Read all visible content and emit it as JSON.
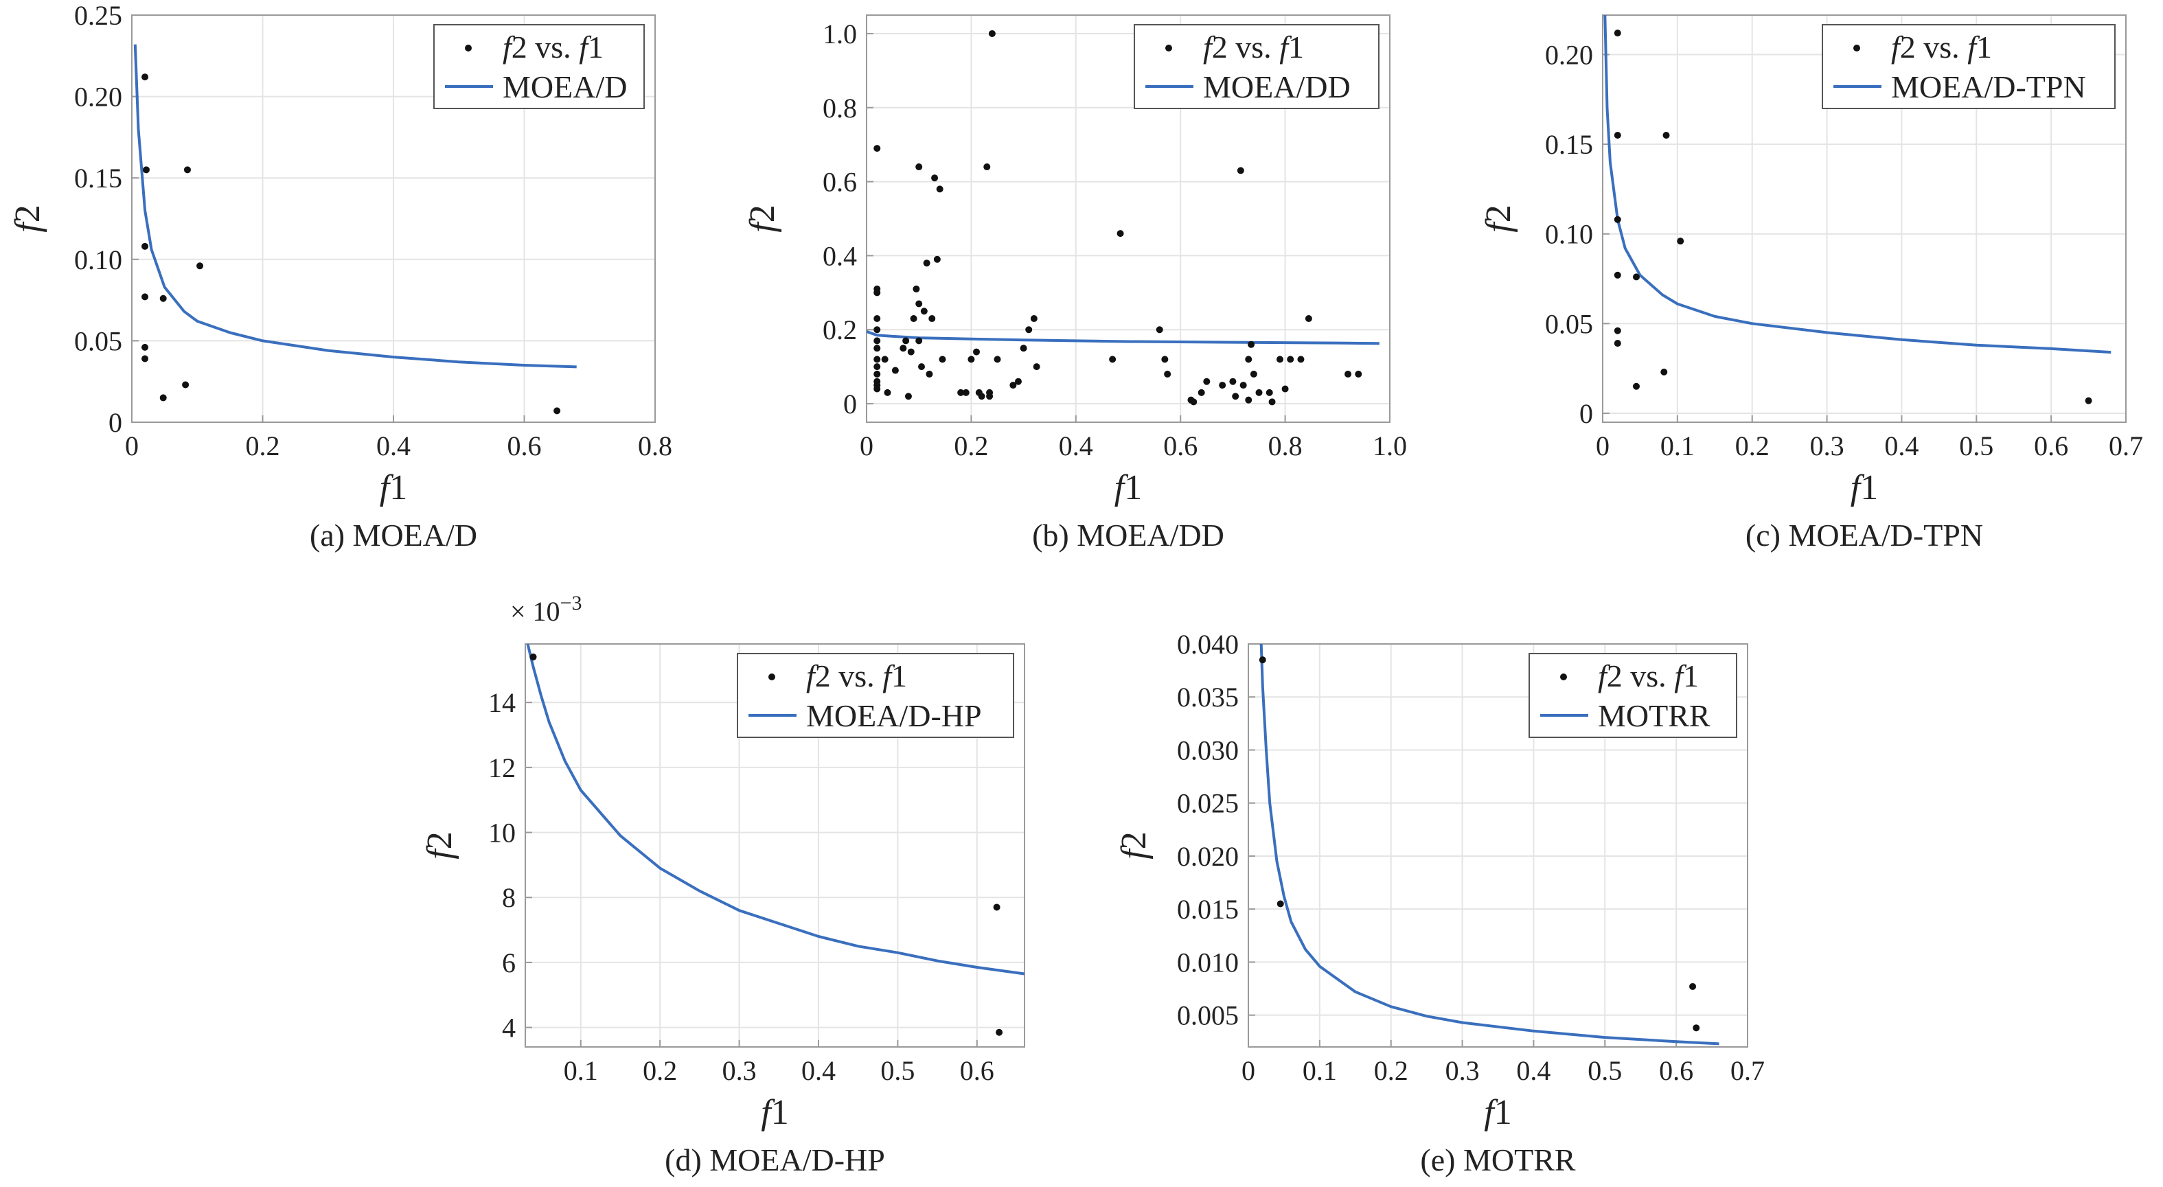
{
  "figure": {
    "background": "#ffffff",
    "curve_color": "#3a6fbe",
    "point_color": "#111111",
    "grid_color": "#e4e4e4",
    "axis_color": "#9a9a9a"
  },
  "chart_data": [
    {
      "type": "scatter",
      "id": "a",
      "caption": "(a) MOEA/D",
      "xlabel": "f1",
      "ylabel": "f2",
      "xlim": [
        0,
        0.8
      ],
      "ylim": [
        0,
        0.25
      ],
      "xticks": [
        0,
        0.2,
        0.4,
        0.6,
        0.8
      ],
      "xtick_labels": [
        "0",
        "0.2",
        "0.4",
        "0.6",
        "0.8"
      ],
      "yticks": [
        0,
        0.05,
        0.1,
        0.15,
        0.2,
        0.25
      ],
      "ytick_labels": [
        "0",
        "0.05",
        "0.10",
        "0.15",
        "0.20",
        "0.25"
      ],
      "grid": true,
      "legend_position": "top-right",
      "legend": [
        "f2 vs. f1",
        "MOEA/D"
      ],
      "points": [
        [
          0.02,
          0.212
        ],
        [
          0.022,
          0.155
        ],
        [
          0.02,
          0.108
        ],
        [
          0.02,
          0.077
        ],
        [
          0.02,
          0.046
        ],
        [
          0.02,
          0.039
        ],
        [
          0.048,
          0.076
        ],
        [
          0.048,
          0.015
        ],
        [
          0.085,
          0.155
        ],
        [
          0.104,
          0.096
        ],
        [
          0.082,
          0.023
        ],
        [
          0.65,
          0.007
        ]
      ],
      "curve": {
        "name": "MOEA/D",
        "x": [
          0.005,
          0.01,
          0.02,
          0.03,
          0.05,
          0.08,
          0.1,
          0.15,
          0.2,
          0.3,
          0.4,
          0.5,
          0.6,
          0.68
        ],
        "y": [
          0.232,
          0.18,
          0.13,
          0.106,
          0.083,
          0.068,
          0.062,
          0.055,
          0.05,
          0.044,
          0.04,
          0.037,
          0.035,
          0.034
        ]
      }
    },
    {
      "type": "scatter",
      "id": "b",
      "caption": "(b) MOEA/DD",
      "xlabel": "f1",
      "ylabel": "f2",
      "xlim": [
        0,
        1.0
      ],
      "ylim": [
        -0.05,
        1.05
      ],
      "xticks": [
        0,
        0.2,
        0.4,
        0.6,
        0.8,
        1.0
      ],
      "xtick_labels": [
        "0",
        "0.2",
        "0.4",
        "0.6",
        "0.8",
        "1.0"
      ],
      "yticks": [
        0,
        0.2,
        0.4,
        0.6,
        0.8,
        1.0
      ],
      "ytick_labels": [
        "0",
        "0.2",
        "0.4",
        "0.6",
        "0.8",
        "1.0"
      ],
      "grid": true,
      "legend_position": "top-right",
      "legend": [
        "f2 vs. f1",
        "MOEA/DD"
      ],
      "points": [
        [
          0.02,
          0.69
        ],
        [
          0.02,
          0.31
        ],
        [
          0.02,
          0.3
        ],
        [
          0.02,
          0.23
        ],
        [
          0.02,
          0.2
        ],
        [
          0.02,
          0.17
        ],
        [
          0.02,
          0.15
        ],
        [
          0.02,
          0.12
        ],
        [
          0.02,
          0.1
        ],
        [
          0.02,
          0.08
        ],
        [
          0.02,
          0.06
        ],
        [
          0.02,
          0.05
        ],
        [
          0.02,
          0.04
        ],
        [
          0.035,
          0.12
        ],
        [
          0.04,
          0.03
        ],
        [
          0.055,
          0.09
        ],
        [
          0.07,
          0.15
        ],
        [
          0.075,
          0.17
        ],
        [
          0.08,
          0.02
        ],
        [
          0.085,
          0.14
        ],
        [
          0.09,
          0.23
        ],
        [
          0.095,
          0.31
        ],
        [
          0.1,
          0.64
        ],
        [
          0.1,
          0.27
        ],
        [
          0.1,
          0.17
        ],
        [
          0.105,
          0.1
        ],
        [
          0.11,
          0.25
        ],
        [
          0.115,
          0.38
        ],
        [
          0.12,
          0.08
        ],
        [
          0.125,
          0.23
        ],
        [
          0.13,
          0.61
        ],
        [
          0.135,
          0.39
        ],
        [
          0.14,
          0.58
        ],
        [
          0.145,
          0.12
        ],
        [
          0.18,
          0.03
        ],
        [
          0.19,
          0.03
        ],
        [
          0.2,
          0.12
        ],
        [
          0.21,
          0.14
        ],
        [
          0.215,
          0.03
        ],
        [
          0.22,
          0.02
        ],
        [
          0.23,
          0.64
        ],
        [
          0.235,
          0.02
        ],
        [
          0.235,
          0.03
        ],
        [
          0.24,
          1.0
        ],
        [
          0.25,
          0.12
        ],
        [
          0.28,
          0.05
        ],
        [
          0.29,
          0.06
        ],
        [
          0.3,
          0.15
        ],
        [
          0.31,
          0.2
        ],
        [
          0.32,
          0.23
        ],
        [
          0.325,
          0.1
        ],
        [
          0.47,
          0.12
        ],
        [
          0.485,
          0.46
        ],
        [
          0.56,
          0.2
        ],
        [
          0.57,
          0.12
        ],
        [
          0.575,
          0.08
        ],
        [
          0.62,
          0.01
        ],
        [
          0.625,
          0.005
        ],
        [
          0.64,
          0.03
        ],
        [
          0.65,
          0.06
        ],
        [
          0.68,
          0.05
        ],
        [
          0.7,
          0.06
        ],
        [
          0.705,
          0.02
        ],
        [
          0.715,
          0.63
        ],
        [
          0.72,
          0.05
        ],
        [
          0.73,
          0.01
        ],
        [
          0.73,
          0.12
        ],
        [
          0.735,
          0.16
        ],
        [
          0.74,
          0.08
        ],
        [
          0.75,
          0.03
        ],
        [
          0.77,
          0.03
        ],
        [
          0.775,
          0.005
        ],
        [
          0.79,
          0.12
        ],
        [
          0.8,
          0.04
        ],
        [
          0.81,
          0.12
        ],
        [
          0.83,
          0.12
        ],
        [
          0.845,
          0.23
        ],
        [
          0.92,
          0.08
        ],
        [
          0.94,
          0.08
        ]
      ],
      "curve": {
        "name": "MOEA/DD",
        "x": [
          0.0,
          0.02,
          0.05,
          0.1,
          0.2,
          0.3,
          0.5,
          0.7,
          0.9,
          0.98
        ],
        "y": [
          0.195,
          0.185,
          0.182,
          0.178,
          0.175,
          0.172,
          0.168,
          0.166,
          0.164,
          0.163
        ]
      }
    },
    {
      "type": "scatter",
      "id": "c",
      "caption": "(c) MOEA/D-TPN",
      "xlabel": "f1",
      "ylabel": "f2",
      "xlim": [
        0,
        0.7
      ],
      "ylim": [
        -0.005,
        0.222
      ],
      "xticks": [
        0,
        0.1,
        0.2,
        0.3,
        0.4,
        0.5,
        0.6,
        0.7
      ],
      "xtick_labels": [
        "0",
        "0.1",
        "0.2",
        "0.3",
        "0.4",
        "0.5",
        "0.6",
        "0.7"
      ],
      "yticks": [
        0,
        0.05,
        0.1,
        0.15,
        0.2
      ],
      "ytick_labels": [
        "0",
        "0.05",
        "0.10",
        "0.15",
        "0.20"
      ],
      "grid": true,
      "legend_position": "top-right",
      "legend": [
        "f2 vs. f1",
        "MOEA/D-TPN"
      ],
      "points": [
        [
          0.02,
          0.212
        ],
        [
          0.02,
          0.155
        ],
        [
          0.02,
          0.108
        ],
        [
          0.02,
          0.077
        ],
        [
          0.02,
          0.046
        ],
        [
          0.02,
          0.039
        ],
        [
          0.045,
          0.076
        ],
        [
          0.045,
          0.015
        ],
        [
          0.085,
          0.155
        ],
        [
          0.104,
          0.096
        ],
        [
          0.082,
          0.023
        ],
        [
          0.65,
          0.007
        ]
      ],
      "curve": {
        "name": "MOEA/D-TPN",
        "x": [
          0.003,
          0.006,
          0.01,
          0.02,
          0.03,
          0.05,
          0.08,
          0.1,
          0.15,
          0.2,
          0.3,
          0.4,
          0.5,
          0.6,
          0.68
        ],
        "y": [
          0.222,
          0.17,
          0.14,
          0.108,
          0.092,
          0.077,
          0.066,
          0.061,
          0.054,
          0.05,
          0.045,
          0.041,
          0.038,
          0.036,
          0.034
        ]
      }
    },
    {
      "type": "scatter",
      "id": "d",
      "caption": "(d) MOEA/D-HP",
      "xlabel": "f1",
      "ylabel": "f2",
      "multiplier": "× 10",
      "multiplier_exponent": "−3",
      "xlim": [
        0.03,
        0.66
      ],
      "ylim": [
        3.4,
        15.8
      ],
      "xticks": [
        0.1,
        0.2,
        0.3,
        0.4,
        0.5,
        0.6
      ],
      "xtick_labels": [
        "0.1",
        "0.2",
        "0.3",
        "0.4",
        "0.5",
        "0.6"
      ],
      "yticks": [
        4,
        6,
        8,
        10,
        12,
        14
      ],
      "ytick_labels": [
        "4",
        "6",
        "8",
        "10",
        "12",
        "14"
      ],
      "grid": true,
      "legend_position": "top-right",
      "legend": [
        "f2 vs. f1",
        "MOEA/D-HP"
      ],
      "points": [
        [
          0.04,
          15.4
        ],
        [
          0.625,
          7.7
        ],
        [
          0.628,
          3.85
        ]
      ],
      "curve": {
        "name": "MOEA/D-HP",
        "x": [
          0.033,
          0.04,
          0.05,
          0.06,
          0.08,
          0.1,
          0.15,
          0.2,
          0.25,
          0.3,
          0.35,
          0.4,
          0.45,
          0.5,
          0.55,
          0.6,
          0.66
        ],
        "y": [
          15.8,
          15.1,
          14.2,
          13.4,
          12.2,
          11.3,
          9.9,
          8.9,
          8.2,
          7.6,
          7.2,
          6.8,
          6.5,
          6.3,
          6.05,
          5.85,
          5.65
        ]
      }
    },
    {
      "type": "scatter",
      "id": "e",
      "caption": "(e) MOTRR",
      "xlabel": "f1",
      "ylabel": "f2",
      "xlim": [
        0,
        0.7
      ],
      "ylim": [
        0.002,
        0.04
      ],
      "xticks": [
        0,
        0.1,
        0.2,
        0.3,
        0.4,
        0.5,
        0.6,
        0.7
      ],
      "xtick_labels": [
        "0",
        "0.1",
        "0.2",
        "0.3",
        "0.4",
        "0.5",
        "0.6",
        "0.7"
      ],
      "yticks": [
        0.005,
        0.01,
        0.015,
        0.02,
        0.025,
        0.03,
        0.035,
        0.04
      ],
      "ytick_labels": [
        "0.005",
        "0.010",
        "0.015",
        "0.020",
        "0.025",
        "0.030",
        "0.035",
        "0.040"
      ],
      "grid": true,
      "legend_position": "top-right",
      "legend": [
        "f2 vs. f1",
        "MOTRR"
      ],
      "points": [
        [
          0.02,
          0.0385
        ],
        [
          0.045,
          0.0155
        ],
        [
          0.623,
          0.0077
        ],
        [
          0.628,
          0.0038
        ]
      ],
      "curve": {
        "name": "MOTRR",
        "x": [
          0.018,
          0.02,
          0.025,
          0.03,
          0.04,
          0.05,
          0.06,
          0.08,
          0.1,
          0.15,
          0.2,
          0.25,
          0.3,
          0.4,
          0.5,
          0.6,
          0.66
        ],
        "y": [
          0.04,
          0.036,
          0.03,
          0.025,
          0.0195,
          0.0162,
          0.0138,
          0.0112,
          0.0096,
          0.0072,
          0.0058,
          0.0049,
          0.0043,
          0.0035,
          0.0029,
          0.0025,
          0.0023
        ]
      }
    }
  ]
}
